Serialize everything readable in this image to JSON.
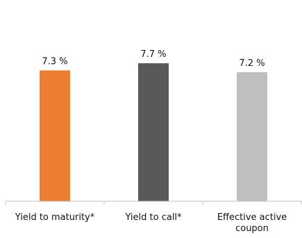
{
  "chart_data": {
    "type": "bar",
    "categories": [
      "Yield to maturity*",
      "Yield to call*",
      "Effective active coupon"
    ],
    "category_lines": [
      [
        "Yield to maturity*"
      ],
      [
        "Yield to call*"
      ],
      [
        "Effective active",
        "coupon"
      ]
    ],
    "values": [
      7.3,
      7.7,
      7.2
    ],
    "value_labels": [
      "7.3 %",
      "7.7 %",
      "7.2 %"
    ],
    "bar_colors": [
      "#ED7D31",
      "#595959",
      "#BFBFBF"
    ],
    "title": "",
    "xlabel": "",
    "ylabel": "",
    "ylim": [
      0,
      7.9
    ],
    "grid": false,
    "legend": "none"
  }
}
